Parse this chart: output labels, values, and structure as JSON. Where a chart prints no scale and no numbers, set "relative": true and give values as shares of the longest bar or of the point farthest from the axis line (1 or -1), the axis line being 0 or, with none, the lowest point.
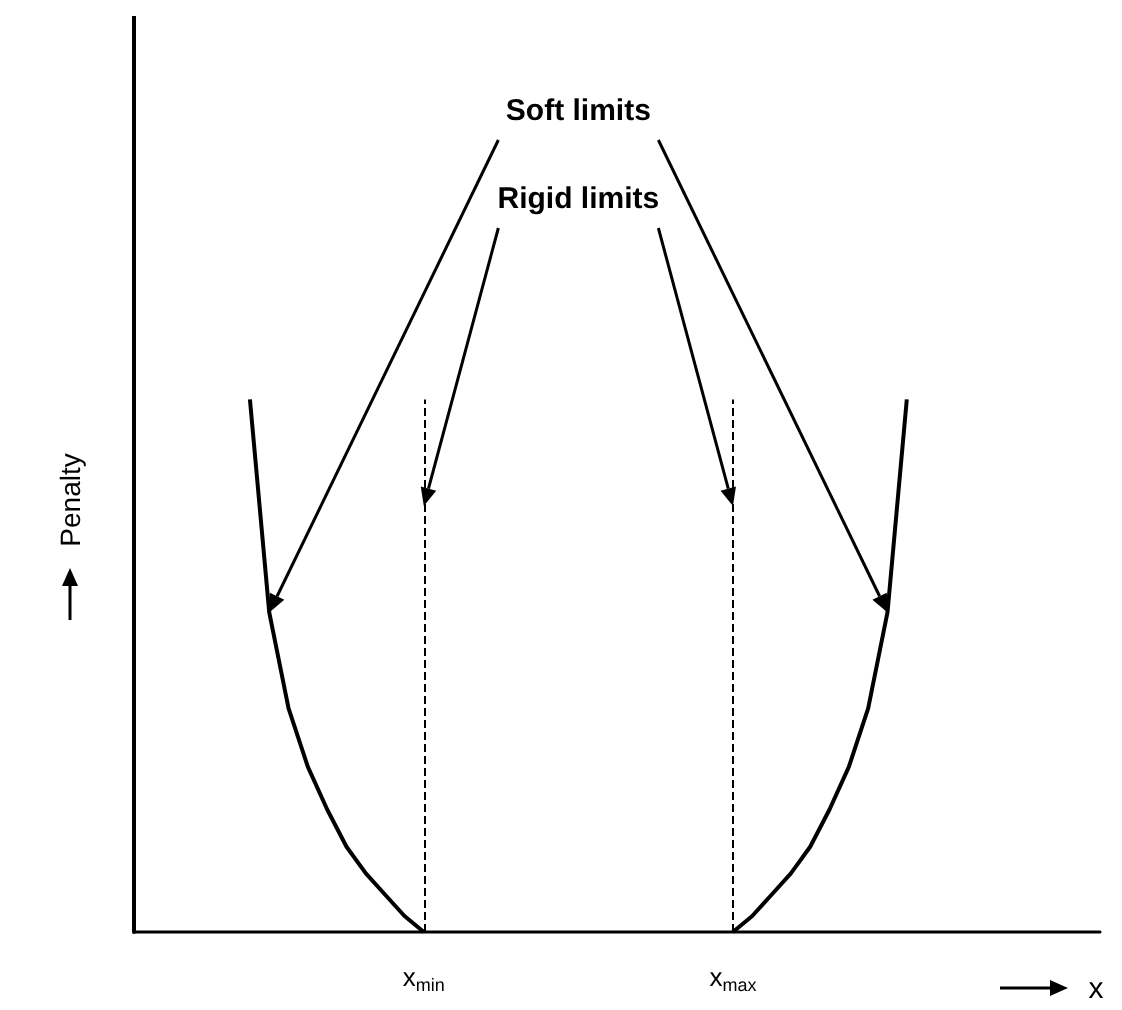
{
  "chart_data": {
    "type": "line",
    "relative": true,
    "xlabel": "x",
    "ylabel": "Penalty",
    "annotations": [
      "Soft limits",
      "Rigid limits"
    ],
    "categories": [
      null,
      null,
      null,
      null,
      null,
      null,
      null,
      null,
      null,
      null,
      null,
      null,
      null,
      null,
      null,
      "x$_{min}$",
      null,
      null,
      null,
      null,
      null,
      null,
      null,
      null,
      null,
      null,
      null,
      null,
      null,
      null,
      null,
      "x$_{max}$",
      null,
      null,
      null,
      null,
      null,
      null,
      null,
      null,
      null,
      null,
      null,
      null,
      null,
      null,
      null,
      null,
      null,
      null,
      null
    ],
    "series": [
      {
        "color": "#000000",
        "line_style": "solid",
        "values": [
          null,
          null,
          null,
          null,
          null,
          null,
          1,
          0.6,
          0.42,
          0.31,
          0.23,
          0.16,
          0.11,
          0.07,
          0.03,
          0,
          null,
          null,
          null,
          null,
          null,
          null,
          null,
          null,
          null,
          null,
          null,
          null,
          null,
          null,
          null,
          null,
          null,
          null,
          null,
          null,
          null,
          null,
          null,
          null,
          null,
          null,
          null,
          null,
          null,
          null,
          null,
          null,
          null,
          null,
          null
        ]
      },
      {
        "color": "#000000",
        "line_style": "solid",
        "values": [
          null,
          null,
          null,
          null,
          null,
          null,
          null,
          null,
          null,
          null,
          null,
          null,
          null,
          null,
          null,
          null,
          null,
          null,
          null,
          null,
          null,
          null,
          null,
          null,
          null,
          null,
          null,
          null,
          null,
          null,
          null,
          0,
          0.03,
          0.07,
          0.11,
          0.16,
          0.23,
          0.31,
          0.42,
          0.6,
          1,
          null,
          null,
          null,
          null,
          null,
          null,
          null,
          null,
          null,
          null
        ]
      }
    ],
    "ref_lines": [
      {
        "axis": "x",
        "value": "x$_{min}$",
        "color": "#000000",
        "line_style": "dashed"
      },
      {
        "axis": "x",
        "value": "x$_{max}$",
        "color": "#000000",
        "line_style": "dashed"
      }
    ]
  }
}
